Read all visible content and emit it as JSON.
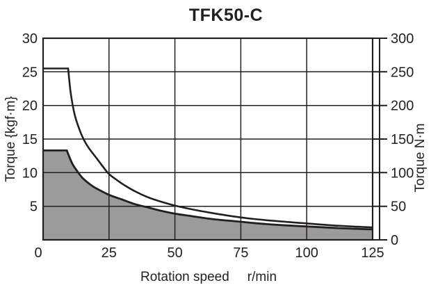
{
  "title": "TFK50-C",
  "colors": {
    "line": "#231f20",
    "grid": "#231f20",
    "fill_gray": "#9b9b9b",
    "background": "#ffffff",
    "text": "#231f20"
  },
  "chart_data": {
    "type": "line",
    "title": "TFK50-C",
    "xlabel": "Rotation speed",
    "x_unit": "r/min",
    "ylabel_left": "Torque {kgf·m}",
    "ylabel_right": "Torque N·m",
    "xlim": [
      0,
      125
    ],
    "ylim_left": [
      0,
      30
    ],
    "ylim_right": [
      0,
      300
    ],
    "x_ticks": [
      0,
      25,
      50,
      75,
      100,
      125
    ],
    "y_ticks_left": [
      5,
      10,
      15,
      20,
      25,
      30
    ],
    "y_ticks_right": [
      0,
      50,
      100,
      150,
      200,
      250,
      300
    ],
    "grid": true,
    "legend": "none",
    "series": [
      {
        "name": "maximum-torque-curve",
        "style": "line",
        "fill": false,
        "flat_until_index": 1,
        "points": [
          [
            0,
            25.5
          ],
          [
            9.5,
            25.5
          ],
          [
            10.5,
            21.8
          ],
          [
            12,
            18.6
          ],
          [
            14,
            16.2
          ],
          [
            16,
            14.5
          ],
          [
            18,
            13.3
          ],
          [
            20,
            12.3
          ],
          [
            22.5,
            11.0
          ],
          [
            25,
            9.8
          ],
          [
            28,
            8.9
          ],
          [
            31,
            8.1
          ],
          [
            35,
            7.2
          ],
          [
            40,
            6.3
          ],
          [
            45,
            5.65
          ],
          [
            50,
            5.1
          ],
          [
            57,
            4.5
          ],
          [
            64,
            4.0
          ],
          [
            72,
            3.5
          ],
          [
            80,
            3.1
          ],
          [
            90,
            2.75
          ],
          [
            100,
            2.45
          ],
          [
            112,
            2.1
          ],
          [
            125,
            1.85
          ]
        ]
      },
      {
        "name": "continuous-torque-curve",
        "style": "line",
        "fill": true,
        "flat_until_index": 1,
        "points": [
          [
            0,
            13.3
          ],
          [
            9,
            13.3
          ],
          [
            11,
            11.4
          ],
          [
            13,
            10.2
          ],
          [
            15,
            9.2
          ],
          [
            18,
            8.2
          ],
          [
            20,
            7.7
          ],
          [
            25,
            6.7
          ],
          [
            30,
            6.0
          ],
          [
            35,
            5.3
          ],
          [
            40,
            4.8
          ],
          [
            45,
            4.3
          ],
          [
            50,
            3.9
          ],
          [
            57,
            3.5
          ],
          [
            64,
            3.1
          ],
          [
            72,
            2.8
          ],
          [
            80,
            2.5
          ],
          [
            90,
            2.2
          ],
          [
            100,
            2.0
          ],
          [
            112,
            1.75
          ],
          [
            125,
            1.55
          ]
        ]
      }
    ]
  }
}
